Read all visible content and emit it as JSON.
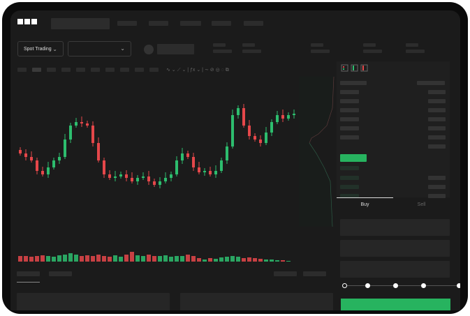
{
  "header": {
    "logo": "OKX",
    "mode_label": "Spot Trading"
  },
  "trade_tabs": [
    {
      "label": "Buy",
      "active": true
    },
    {
      "label": "Sell",
      "active": false
    }
  ],
  "colors": {
    "up": "#2dbd6e",
    "down": "#e5474a",
    "accent": "#27b35f"
  },
  "icons": [
    "chevron-down-icon",
    "candles-icon",
    "order-book-both-icon",
    "order-book-buy-icon",
    "order-book-sell-icon"
  ],
  "slider_percent": 0,
  "chart_data": {
    "type": "candlestick",
    "closes": [
      95,
      90,
      85,
      70,
      65,
      75,
      85,
      90,
      115,
      135,
      140,
      138,
      135,
      110,
      85,
      65,
      60,
      62,
      65,
      60,
      55,
      60,
      62,
      55,
      50,
      55,
      60,
      65,
      85,
      95,
      90,
      75,
      68,
      70,
      65,
      70,
      85,
      105,
      150,
      160,
      135,
      120,
      115,
      110,
      125,
      140,
      150,
      145,
      150,
      152
    ],
    "volumes": [
      12,
      12,
      11,
      12,
      13,
      12,
      11,
      13,
      14,
      16,
      14,
      12,
      13,
      12,
      14,
      12,
      11,
      13,
      11,
      14,
      18,
      13,
      12,
      14,
      12,
      12,
      13,
      11,
      12,
      12,
      14,
      12,
      9,
      7,
      9,
      8,
      10,
      11,
      12,
      11,
      9,
      10,
      9,
      8,
      7,
      7,
      6,
      6,
      5,
      4
    ]
  }
}
